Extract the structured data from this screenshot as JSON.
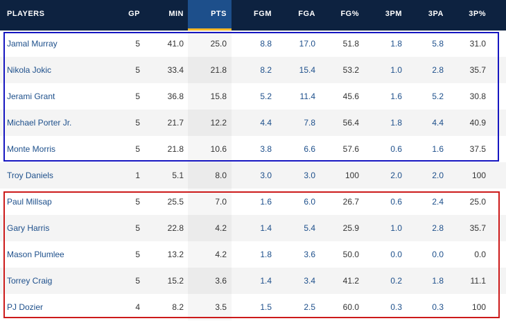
{
  "columns": {
    "players": "PLAYERS",
    "gp": "GP",
    "min": "MIN",
    "pts": "PTS",
    "fgm": "FGM",
    "fga": "FGA",
    "fgp": "FG%",
    "tpm": "3PM",
    "tpa": "3PA",
    "tpp": "3P%"
  },
  "colors": {
    "header_bg": "#0d2240",
    "sort_accent": "#fdb927",
    "link": "#1d4f8b",
    "box_starters": "#1515c0",
    "box_bench": "#cc1a1a"
  },
  "rows": [
    {
      "player": "Jamal Murray",
      "gp": "5",
      "min": "41.0",
      "pts": "25.0",
      "fgm": "8.8",
      "fga": "17.0",
      "fgp": "51.8",
      "tpm": "1.8",
      "tpa": "5.8",
      "tpp": "31.0"
    },
    {
      "player": "Nikola Jokic",
      "gp": "5",
      "min": "33.4",
      "pts": "21.8",
      "fgm": "8.2",
      "fga": "15.4",
      "fgp": "53.2",
      "tpm": "1.0",
      "tpa": "2.8",
      "tpp": "35.7"
    },
    {
      "player": "Jerami Grant",
      "gp": "5",
      "min": "36.8",
      "pts": "15.8",
      "fgm": "5.2",
      "fga": "11.4",
      "fgp": "45.6",
      "tpm": "1.6",
      "tpa": "5.2",
      "tpp": "30.8"
    },
    {
      "player": "Michael Porter Jr.",
      "gp": "5",
      "min": "21.7",
      "pts": "12.2",
      "fgm": "4.4",
      "fga": "7.8",
      "fgp": "56.4",
      "tpm": "1.8",
      "tpa": "4.4",
      "tpp": "40.9"
    },
    {
      "player": "Monte Morris",
      "gp": "5",
      "min": "21.8",
      "pts": "10.6",
      "fgm": "3.8",
      "fga": "6.6",
      "fgp": "57.6",
      "tpm": "0.6",
      "tpa": "1.6",
      "tpp": "37.5"
    },
    {
      "player": "Troy Daniels",
      "gp": "1",
      "min": "5.1",
      "pts": "8.0",
      "fgm": "3.0",
      "fga": "3.0",
      "fgp": "100",
      "tpm": "2.0",
      "tpa": "2.0",
      "tpp": "100"
    },
    {
      "player": "Paul Millsap",
      "gp": "5",
      "min": "25.5",
      "pts": "7.0",
      "fgm": "1.6",
      "fga": "6.0",
      "fgp": "26.7",
      "tpm": "0.6",
      "tpa": "2.4",
      "tpp": "25.0"
    },
    {
      "player": "Gary Harris",
      "gp": "5",
      "min": "22.8",
      "pts": "4.2",
      "fgm": "1.4",
      "fga": "5.4",
      "fgp": "25.9",
      "tpm": "1.0",
      "tpa": "2.8",
      "tpp": "35.7"
    },
    {
      "player": "Mason Plumlee",
      "gp": "5",
      "min": "13.2",
      "pts": "4.2",
      "fgm": "1.8",
      "fga": "3.6",
      "fgp": "50.0",
      "tpm": "0.0",
      "tpa": "0.0",
      "tpp": "0.0"
    },
    {
      "player": "Torrey Craig",
      "gp": "5",
      "min": "15.2",
      "pts": "3.6",
      "fgm": "1.4",
      "fga": "3.4",
      "fgp": "41.2",
      "tpm": "0.2",
      "tpa": "1.8",
      "tpp": "11.1"
    },
    {
      "player": "PJ Dozier",
      "gp": "4",
      "min": "8.2",
      "pts": "3.5",
      "fgm": "1.5",
      "fga": "2.5",
      "fgp": "60.0",
      "tpm": "0.3",
      "tpa": "0.3",
      "tpp": "100"
    }
  ]
}
